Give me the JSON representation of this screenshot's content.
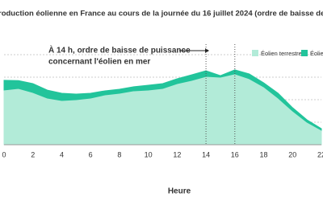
{
  "chart_data": {
    "type": "area",
    "title": "roduction éolienne en France au cours de la journée du 16 juillet 2024 (ordre de baisse de puiss",
    "annotation": [
      "À 14 h, ordre de baisse de puissance",
      "concernant l'éolien en mer"
    ],
    "x_label": "Heure",
    "x": [
      0,
      1,
      2,
      3,
      4,
      5,
      6,
      7,
      8,
      9,
      10,
      11,
      12,
      13,
      14,
      15,
      16,
      17,
      18,
      19,
      20,
      21,
      22
    ],
    "series": [
      {
        "name": "Éolien terrestre",
        "color": "#b2ebd8",
        "values": [
          48.6,
          50,
          46.4,
          41.4,
          39.3,
          40,
          41.4,
          44.3,
          45.7,
          47.9,
          48.6,
          50,
          54.3,
          57.1,
          60.7,
          60,
          62.9,
          58.6,
          51.4,
          41.4,
          30,
          20,
          12.9
        ]
      },
      {
        "name": "Éolie",
        "color": "#22c49b",
        "values": [
          8.6,
          7,
          7.9,
          7.1,
          6.4,
          5,
          4.3,
          3.6,
          3.6,
          3.6,
          4.3,
          4.3,
          4.3,
          5,
          5,
          1.4,
          3.6,
          4.3,
          3.6,
          4.3,
          2.9,
          2.1,
          1.4
        ]
      }
    ],
    "stacked": true,
    "markers": [
      14,
      16
    ],
    "xlim": [
      0,
      22
    ],
    "xticks": [
      0,
      2,
      4,
      6,
      8,
      10,
      12,
      14,
      16,
      18,
      20,
      22
    ],
    "ylim": [
      0,
      100
    ],
    "yticks": [
      20,
      40,
      60,
      80
    ],
    "grid": true
  }
}
